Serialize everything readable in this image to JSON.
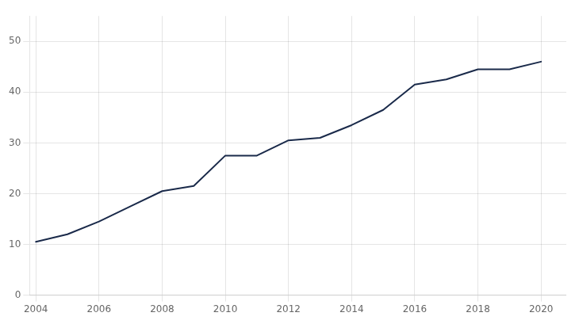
{
  "chart_data": {
    "type": "line",
    "x": [
      2004,
      2005,
      2006,
      2007,
      2008,
      2009,
      2010,
      2011,
      2012,
      2013,
      2014,
      2015,
      2016,
      2017,
      2018,
      2019,
      2020
    ],
    "values": [
      10.5,
      12.0,
      14.5,
      17.5,
      20.5,
      21.5,
      27.5,
      27.5,
      30.5,
      31.0,
      33.5,
      36.5,
      41.5,
      42.5,
      44.5,
      44.5,
      46.0
    ],
    "color": "#1a2a4a",
    "xlim": [
      2003.8,
      2020.8
    ],
    "xticks": [
      2004,
      2006,
      2008,
      2010,
      2012,
      2014,
      2016,
      2018,
      2020
    ],
    "ylim": [
      0,
      55
    ],
    "yticks": [
      0,
      10,
      20,
      30,
      40,
      50
    ],
    "grid": true
  }
}
